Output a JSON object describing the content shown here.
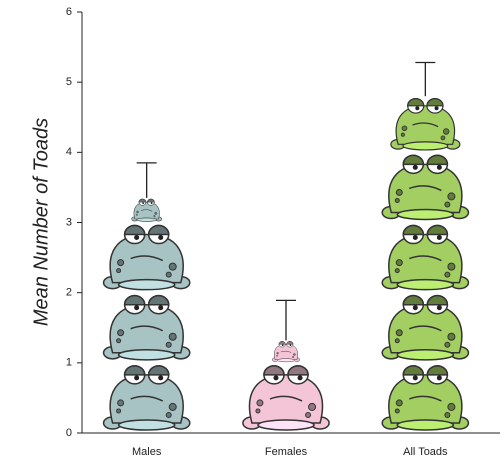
{
  "chart_data": {
    "type": "pictograph",
    "y_label": "Mean Number of Toads",
    "categories": [
      "Males",
      "Females",
      "All Toads"
    ],
    "values": [
      3.35,
      1.32,
      4.8
    ],
    "errors": [
      0.5,
      0.57,
      0.48
    ],
    "colors": [
      "#a7c3c4",
      "#f3c5d6",
      "#a3cf62"
    ],
    "ylim": [
      0,
      6
    ],
    "yticks": [
      0,
      1,
      2,
      3,
      4,
      5,
      6
    ]
  }
}
